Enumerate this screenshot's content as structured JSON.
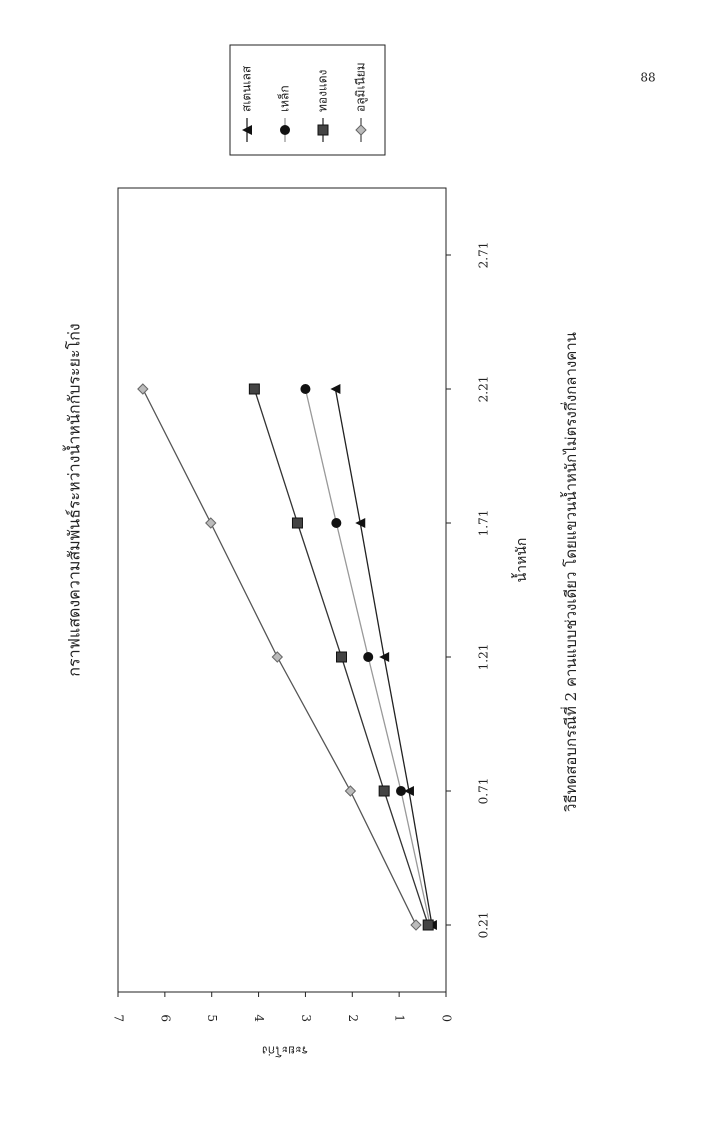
{
  "page_number": "88",
  "chart_data": {
    "type": "line",
    "title": "กราฟแสดงความสัมพันธ์ระหว่างน้ำหนักกับระยะโก่ง",
    "caption": "วิธีทดสอบกรณีที่ 2 คานแบบช่วงเดียว  โดยแขวนน้ำหนักไม่ตรงกึ่งกลางคาน",
    "x_label": "น้ำหนัก",
    "y_label": "ระยะโก่ง",
    "x": [
      0.21,
      0.71,
      1.21,
      1.71,
      2.21
    ],
    "series": [
      {
        "name": "สเตนเลส",
        "color": "#222",
        "marker": "triangle",
        "values": [
          0.3,
          0.79,
          1.32,
          1.83,
          2.36
        ]
      },
      {
        "name": "เหล็ก",
        "color": "#999",
        "marker": "circle",
        "values": [
          0.34,
          0.96,
          1.66,
          2.34,
          3.0
        ]
      },
      {
        "name": "ทองแดง",
        "color": "#333",
        "marker": "square",
        "values": [
          0.38,
          1.32,
          2.23,
          3.17,
          4.09
        ]
      },
      {
        "name": "อลูมิเนียม",
        "color": "#555",
        "marker": "diamond",
        "values": [
          0.64,
          2.04,
          3.6,
          5.02,
          6.47
        ]
      }
    ],
    "xlim": [
      -0.04,
      2.96
    ],
    "xticks": [
      0.21,
      0.71,
      1.21,
      1.71,
      2.21,
      2.71
    ],
    "ylim": [
      0,
      7
    ],
    "yticks": [
      0,
      1,
      2,
      3,
      4,
      5,
      6,
      7
    ]
  }
}
